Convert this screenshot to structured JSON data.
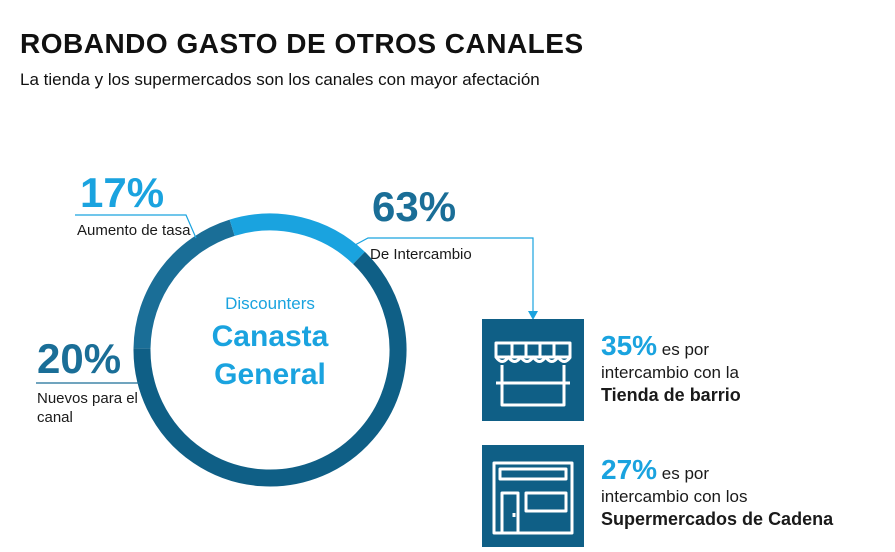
{
  "header": {
    "title": "ROBANDO  GASTO  DE  OTROS  CANALES",
    "subtitle": "La tienda y los supermercados son los canales con mayor afectación"
  },
  "center": {
    "small_label": "Discounters",
    "main_line1": "Canasta",
    "main_line2": "General"
  },
  "segments": {
    "aumento": {
      "value": "17%",
      "label": "Aumento de tasa"
    },
    "nuevos": {
      "value": "20%",
      "label": "Nuevos para el canal"
    },
    "intercambio": {
      "value": "63%",
      "label": "De Intercambio"
    }
  },
  "chart_data": {
    "type": "pie",
    "categories": [
      "Aumento de tasa",
      "Nuevos para el canal",
      "De Intercambio"
    ],
    "values": [
      17,
      20,
      63
    ]
  },
  "breakdown": [
    {
      "value": "35%",
      "prefix": "es por",
      "line2": "intercambio con la",
      "line3": "Tienda de barrio",
      "icon": "store-awning-icon"
    },
    {
      "value": "27%",
      "prefix": "es por",
      "line2": "intercambio con los",
      "line3": "Supermercados de Cadena",
      "icon": "supermarket-icon"
    }
  ],
  "colors": {
    "light_blue": "#1aa3df",
    "mid_blue": "#1a6e97",
    "dark_blue": "#0f5f86"
  }
}
